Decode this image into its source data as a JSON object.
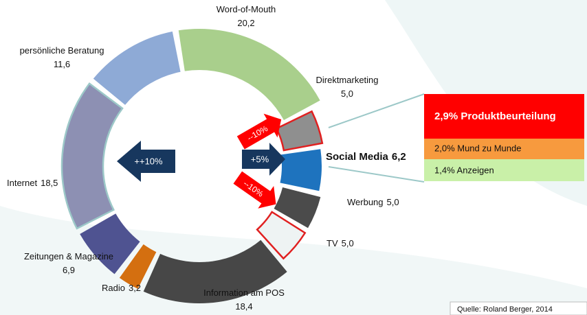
{
  "chart_data": {
    "type": "donut",
    "categories": [
      "Word-of-Mouth",
      "Direktmarketing",
      "Social Media",
      "Werbung",
      "TV",
      "Information am POS",
      "Radio",
      "Zeitungen & Magazine",
      "Internet",
      "persönliche Beratung"
    ],
    "values": [
      20.2,
      5.0,
      6.2,
      5.0,
      5.0,
      18.4,
      3.2,
      6.9,
      18.5,
      11.6
    ],
    "value_labels": [
      "20,2",
      "5,0",
      "6,2",
      "5,0",
      "5,0",
      "18,4",
      "3,2",
      "6,9",
      "18,5",
      "11,6"
    ],
    "colors": [
      "#a9cf8c",
      "#8f8f8f",
      "#1e73be",
      "#4b4b4b",
      "#eef3f3",
      "#474747",
      "#d46f10",
      "#4f5391",
      "#8d90b3",
      "#8eaad6"
    ],
    "annotations": {
      "internet_change": "++10%",
      "social_change": "+5%",
      "direkt_change": "--10%",
      "tv_change": "--10%"
    },
    "breakdown": [
      "2,9% Produktbeurteilung",
      "2,0% Mund zu Munde",
      "1,4% Anzeigen"
    ],
    "source": "Quelle: Roland Berger, 2014"
  }
}
